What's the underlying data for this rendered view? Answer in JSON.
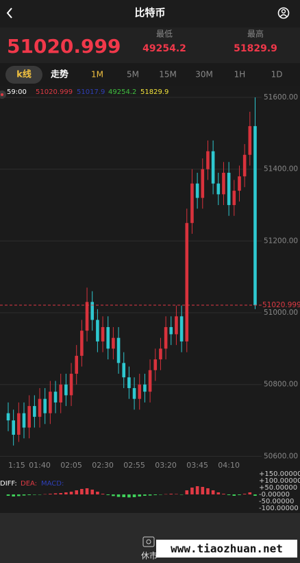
{
  "header": {
    "title": "比特币"
  },
  "price": {
    "last": 51020.999,
    "low_label": "最低",
    "low": 49254.2,
    "high_label": "最高",
    "high": 51829.9
  },
  "tabs": [
    "k线",
    "走势"
  ],
  "intervals": [
    "1M",
    "5M",
    "15M",
    "30M",
    "1H",
    "1D"
  ],
  "footer": {
    "status": "休市",
    "watermark": "www.tiaozhuan.net"
  },
  "chart_data": {
    "type": "candlestick",
    "info": {
      "time": "59:00",
      "values": [
        51020.999,
        51017.9,
        49254.2,
        51829.9
      ],
      "colors": [
        "#e03a44",
        "#2e3fb8",
        "#3fbf3f",
        "#f2e23a"
      ]
    },
    "up_color": "#d8323c",
    "down_color": "#2ec8d0",
    "categories": [
      "1:15",
      null,
      null,
      null,
      null,
      null,
      "01:40",
      null,
      null,
      null,
      null,
      null,
      "02:05",
      null,
      null,
      null,
      null,
      null,
      "02:30",
      null,
      null,
      null,
      null,
      null,
      "02:55",
      null,
      null,
      null,
      null,
      null,
      "03:20",
      null,
      null,
      null,
      null,
      null,
      "03:45",
      null,
      null,
      null,
      null,
      null,
      "04:10",
      null,
      null,
      null,
      null,
      null
    ],
    "open": [
      50720,
      50700,
      50660,
      50720,
      50680,
      50740,
      50710,
      50760,
      50720,
      50780,
      50750,
      50800,
      50770,
      50830,
      50880,
      50950,
      51030,
      50980,
      50920,
      50960,
      50900,
      50930,
      50860,
      50820,
      50790,
      50760,
      50800,
      50780,
      50840,
      50870,
      50900,
      50960,
      50940,
      50990,
      50920,
      51250,
      51360,
      51320,
      51400,
      51450,
      51360,
      51330,
      51390,
      51300,
      51340,
      51380,
      51440,
      51520
    ],
    "high": [
      50750,
      50730,
      50750,
      50750,
      50770,
      50770,
      50790,
      50790,
      50810,
      50810,
      50830,
      50830,
      50860,
      50910,
      50980,
      51070,
      51060,
      51010,
      50990,
      50990,
      50960,
      50960,
      50890,
      50850,
      50820,
      50830,
      50830,
      50870,
      50900,
      50930,
      50990,
      50990,
      51020,
      51020,
      51290,
      51400,
      51390,
      51430,
      51480,
      51480,
      51390,
      51420,
      51420,
      51370,
      51410,
      51470,
      51560,
      51600
    ],
    "low": [
      50670,
      50630,
      50640,
      50650,
      50650,
      50680,
      50680,
      50690,
      50690,
      50720,
      50720,
      50740,
      50740,
      50800,
      50850,
      50920,
      50950,
      50890,
      50890,
      50870,
      50870,
      50830,
      50790,
      50760,
      50730,
      50730,
      50750,
      50750,
      50810,
      50840,
      50870,
      50910,
      50910,
      50890,
      50890,
      51220,
      51290,
      51290,
      51370,
      51330,
      51300,
      51300,
      51270,
      51270,
      51310,
      51350,
      51410,
      51010
    ],
    "close": [
      50700,
      50660,
      50720,
      50680,
      50740,
      50710,
      50760,
      50720,
      50780,
      50750,
      50800,
      50770,
      50830,
      50880,
      50950,
      51030,
      50980,
      50920,
      50960,
      50900,
      50930,
      50860,
      50820,
      50790,
      50760,
      50800,
      50780,
      50840,
      50870,
      50900,
      50960,
      50940,
      50990,
      50920,
      51250,
      51360,
      51320,
      51400,
      51450,
      51360,
      51330,
      51390,
      51300,
      51340,
      51380,
      51440,
      51520,
      51021
    ],
    "last": {
      "value": 51020.999,
      "label": "51020.999"
    },
    "ylim": [
      50595,
      51623
    ],
    "yticks": [
      {
        "value": 51600,
        "label": "51600.00"
      },
      {
        "value": 51400,
        "label": "51400.00"
      },
      {
        "value": 51200,
        "label": "51200.00"
      },
      {
        "value": 51000,
        "label": "51000.00"
      },
      {
        "value": 50800,
        "label": "50800.00"
      },
      {
        "value": 50600,
        "label": "50600.00"
      }
    ],
    "grid": true,
    "macd": {
      "legend": [
        {
          "name": "DIFF:",
          "color": "#ffffff"
        },
        {
          "name": "DEA:",
          "color": "#e03a44"
        },
        {
          "name": "MACD:",
          "color": "#2e3fb8"
        }
      ],
      "values": [
        -10,
        -15,
        -12,
        -8,
        -5,
        -3,
        -2,
        2,
        5,
        8,
        10,
        15,
        20,
        30,
        40,
        45,
        35,
        20,
        5,
        -5,
        -12,
        -18,
        -20,
        -22,
        -20,
        -15,
        -10,
        -8,
        -5,
        -2,
        2,
        5,
        3,
        -2,
        30,
        50,
        60,
        55,
        45,
        30,
        15,
        5,
        -5,
        -10,
        -5,
        5,
        15,
        -10
      ],
      "up_color": "#e03a44",
      "down_color": "#3fd05a",
      "ylim": [
        -125,
        175
      ],
      "yticks": [
        {
          "value": 150,
          "label": "+150.00000"
        },
        {
          "value": 100,
          "label": "+100.00000"
        },
        {
          "value": 50,
          "label": "+50.00000"
        },
        {
          "value": 0,
          "label": "-0.00000"
        },
        {
          "value": -50,
          "label": "-50.00000"
        },
        {
          "value": -100,
          "label": "-100.00000"
        }
      ]
    }
  }
}
